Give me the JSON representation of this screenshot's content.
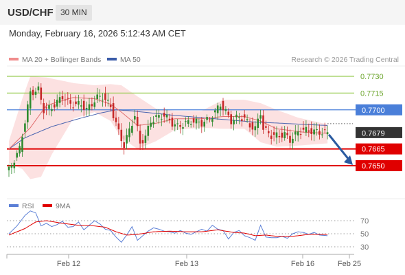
{
  "header": {
    "symbol": "USD/CHF",
    "timeframe": "30 MIN"
  },
  "datetime": "Monday, February 16, 2026 5:12:43 AM CET",
  "legend": [
    {
      "label": "MA 20 + Bollinger Bands",
      "color": "#f08c8c"
    },
    {
      "label": "MA 50",
      "color": "#3a5ba8"
    }
  ],
  "credit": "Research © 2026 Trading Central",
  "colors": {
    "up": "#2e8b2e",
    "down": "#c62828",
    "band_fill": "#fcdcdc",
    "ma20": "#e07070",
    "ma50": "#4a64b0",
    "resistance": "#9acd55",
    "pivot": "#4a7fd9",
    "support": "#e00000",
    "current_badge": "#333333",
    "arrow": "#2a5aa0",
    "rsi": "#5b7fd6",
    "rsi_ma": "#e00000"
  },
  "price_levels": [
    {
      "label": "0.7730",
      "kind": "resistance"
    },
    {
      "label": "0.7715",
      "kind": "resistance"
    },
    {
      "label": "0.7700",
      "kind": "pivot"
    },
    {
      "label": "0.7679",
      "kind": "current"
    },
    {
      "label": "0.7665",
      "kind": "support"
    },
    {
      "label": "0.7650",
      "kind": "support"
    }
  ],
  "rsi_panel": {
    "legend": [
      {
        "label": "RSI",
        "color": "#5b7fd6"
      },
      {
        "label": "9MA",
        "color": "#e00000"
      }
    ],
    "levels": [
      "70",
      "50",
      "30"
    ]
  },
  "x_axis": {
    "ticks": [
      "Feb 12",
      "Feb 13",
      "Feb 16",
      "Feb 25"
    ]
  },
  "chart_data": {
    "type": "candlestick",
    "price_range": [
      0.764,
      0.774
    ],
    "current_price": 0.7679,
    "target_price": 0.765,
    "candle_count": 120,
    "close_path": [
      [
        0,
        0.7646
      ],
      [
        4,
        0.7665
      ],
      [
        8,
        0.7715
      ],
      [
        11,
        0.7718
      ],
      [
        13,
        0.77
      ],
      [
        16,
        0.7702
      ],
      [
        20,
        0.7712
      ],
      [
        23,
        0.7705
      ],
      [
        27,
        0.7705
      ],
      [
        29,
        0.77
      ],
      [
        33,
        0.7711
      ],
      [
        35,
        0.7712
      ],
      [
        38,
        0.7703
      ],
      [
        41,
        0.768
      ],
      [
        43,
        0.7668
      ],
      [
        45,
        0.7682
      ],
      [
        47,
        0.7695
      ],
      [
        49,
        0.767
      ],
      [
        51,
        0.7676
      ],
      [
        53,
        0.769
      ],
      [
        55,
        0.7693
      ],
      [
        58,
        0.7695
      ],
      [
        61,
        0.7688
      ],
      [
        63,
        0.7685
      ],
      [
        66,
        0.7688
      ],
      [
        69,
        0.769
      ],
      [
        72,
        0.7688
      ],
      [
        75,
        0.7692
      ],
      [
        77,
        0.7698
      ],
      [
        79,
        0.7705
      ],
      [
        81,
        0.7698
      ],
      [
        83,
        0.769
      ],
      [
        86,
        0.7694
      ],
      [
        88,
        0.7692
      ],
      [
        90,
        0.7686
      ],
      [
        92,
        0.7683
      ],
      [
        94,
        0.7698
      ],
      [
        95,
        0.7683
      ],
      [
        98,
        0.7677
      ],
      [
        101,
        0.7677
      ],
      [
        103,
        0.7678
      ],
      [
        105,
        0.7673
      ],
      [
        108,
        0.768
      ],
      [
        110,
        0.7682
      ],
      [
        113,
        0.7681
      ],
      [
        116,
        0.768
      ],
      [
        119,
        0.7679
      ]
    ],
    "ma20": [
      [
        0,
        0.7665
      ],
      [
        8,
        0.7684
      ],
      [
        14,
        0.7704
      ],
      [
        24,
        0.7711
      ],
      [
        32,
        0.771
      ],
      [
        38,
        0.7705
      ],
      [
        42,
        0.7698
      ],
      [
        48,
        0.7686
      ],
      [
        55,
        0.7688
      ],
      [
        62,
        0.7692
      ],
      [
        72,
        0.7692
      ],
      [
        80,
        0.7694
      ],
      [
        88,
        0.7694
      ],
      [
        94,
        0.769
      ],
      [
        100,
        0.7683
      ],
      [
        110,
        0.768
      ],
      [
        119,
        0.7679
      ]
    ],
    "ma50": [
      [
        0,
        0.7665
      ],
      [
        6,
        0.7675
      ],
      [
        16,
        0.7685
      ],
      [
        26,
        0.7692
      ],
      [
        34,
        0.7697
      ],
      [
        40,
        0.77
      ],
      [
        46,
        0.7699
      ],
      [
        54,
        0.7697
      ],
      [
        62,
        0.7695
      ],
      [
        72,
        0.7693
      ],
      [
        82,
        0.7691
      ],
      [
        92,
        0.7689
      ],
      [
        102,
        0.7688
      ],
      [
        110,
        0.7687
      ],
      [
        119,
        0.7686
      ]
    ],
    "bb_upper": [
      [
        0,
        0.7672
      ],
      [
        5,
        0.771
      ],
      [
        8,
        0.773
      ],
      [
        14,
        0.7729
      ],
      [
        24,
        0.7724
      ],
      [
        32,
        0.7722
      ],
      [
        38,
        0.7723
      ],
      [
        42,
        0.7722
      ],
      [
        48,
        0.7712
      ],
      [
        55,
        0.7701
      ],
      [
        62,
        0.7699
      ],
      [
        72,
        0.7699
      ],
      [
        80,
        0.7709
      ],
      [
        88,
        0.7709
      ],
      [
        94,
        0.7706
      ],
      [
        100,
        0.77
      ],
      [
        108,
        0.7693
      ],
      [
        119,
        0.7687
      ]
    ],
    "bb_lower": [
      [
        0,
        0.7652
      ],
      [
        5,
        0.7647
      ],
      [
        8,
        0.7638
      ],
      [
        12,
        0.764
      ],
      [
        16,
        0.766
      ],
      [
        24,
        0.7692
      ],
      [
        32,
        0.7698
      ],
      [
        38,
        0.769
      ],
      [
        42,
        0.7675
      ],
      [
        48,
        0.7665
      ],
      [
        55,
        0.7672
      ],
      [
        62,
        0.7682
      ],
      [
        72,
        0.7684
      ],
      [
        80,
        0.7683
      ],
      [
        88,
        0.7683
      ],
      [
        94,
        0.7671
      ],
      [
        100,
        0.7667
      ],
      [
        108,
        0.7668
      ],
      [
        119,
        0.767
      ]
    ],
    "rsi": [
      [
        0,
        50
      ],
      [
        3,
        62
      ],
      [
        6,
        78
      ],
      [
        8,
        85
      ],
      [
        10,
        82
      ],
      [
        12,
        62
      ],
      [
        14,
        66
      ],
      [
        16,
        61
      ],
      [
        18,
        64
      ],
      [
        20,
        69
      ],
      [
        22,
        60
      ],
      [
        24,
        61
      ],
      [
        26,
        68
      ],
      [
        28,
        56
      ],
      [
        30,
        63
      ],
      [
        32,
        70
      ],
      [
        34,
        65
      ],
      [
        36,
        57
      ],
      [
        38,
        55
      ],
      [
        40,
        45
      ],
      [
        42,
        37
      ],
      [
        44,
        48
      ],
      [
        46,
        61
      ],
      [
        48,
        40
      ],
      [
        50,
        47
      ],
      [
        52,
        54
      ],
      [
        54,
        59
      ],
      [
        56,
        57
      ],
      [
        58,
        54
      ],
      [
        60,
        53
      ],
      [
        62,
        51
      ],
      [
        64,
        55
      ],
      [
        66,
        51
      ],
      [
        68,
        49
      ],
      [
        70,
        53
      ],
      [
        72,
        57
      ],
      [
        74,
        54
      ],
      [
        76,
        63
      ],
      [
        78,
        57
      ],
      [
        80,
        55
      ],
      [
        82,
        42
      ],
      [
        84,
        52
      ],
      [
        86,
        55
      ],
      [
        88,
        47
      ],
      [
        90,
        44
      ],
      [
        92,
        40
      ],
      [
        94,
        63
      ],
      [
        96,
        45
      ],
      [
        98,
        44
      ],
      [
        100,
        44
      ],
      [
        102,
        46
      ],
      [
        104,
        43
      ],
      [
        106,
        50
      ],
      [
        108,
        53
      ],
      [
        110,
        52
      ],
      [
        112,
        49
      ],
      [
        114,
        52
      ],
      [
        116,
        48
      ],
      [
        119,
        47
      ]
    ],
    "rsi_ma": [
      [
        0,
        48
      ],
      [
        6,
        58
      ],
      [
        10,
        68
      ],
      [
        14,
        70
      ],
      [
        20,
        66
      ],
      [
        26,
        63
      ],
      [
        32,
        62
      ],
      [
        36,
        60
      ],
      [
        40,
        53
      ],
      [
        44,
        48
      ],
      [
        48,
        49
      ],
      [
        54,
        53
      ],
      [
        60,
        54
      ],
      [
        66,
        53
      ],
      [
        72,
        53
      ],
      [
        78,
        56
      ],
      [
        84,
        52
      ],
      [
        88,
        51
      ],
      [
        92,
        47
      ],
      [
        96,
        48
      ],
      [
        100,
        46
      ],
      [
        106,
        46
      ],
      [
        112,
        49
      ],
      [
        119,
        49
      ]
    ]
  }
}
